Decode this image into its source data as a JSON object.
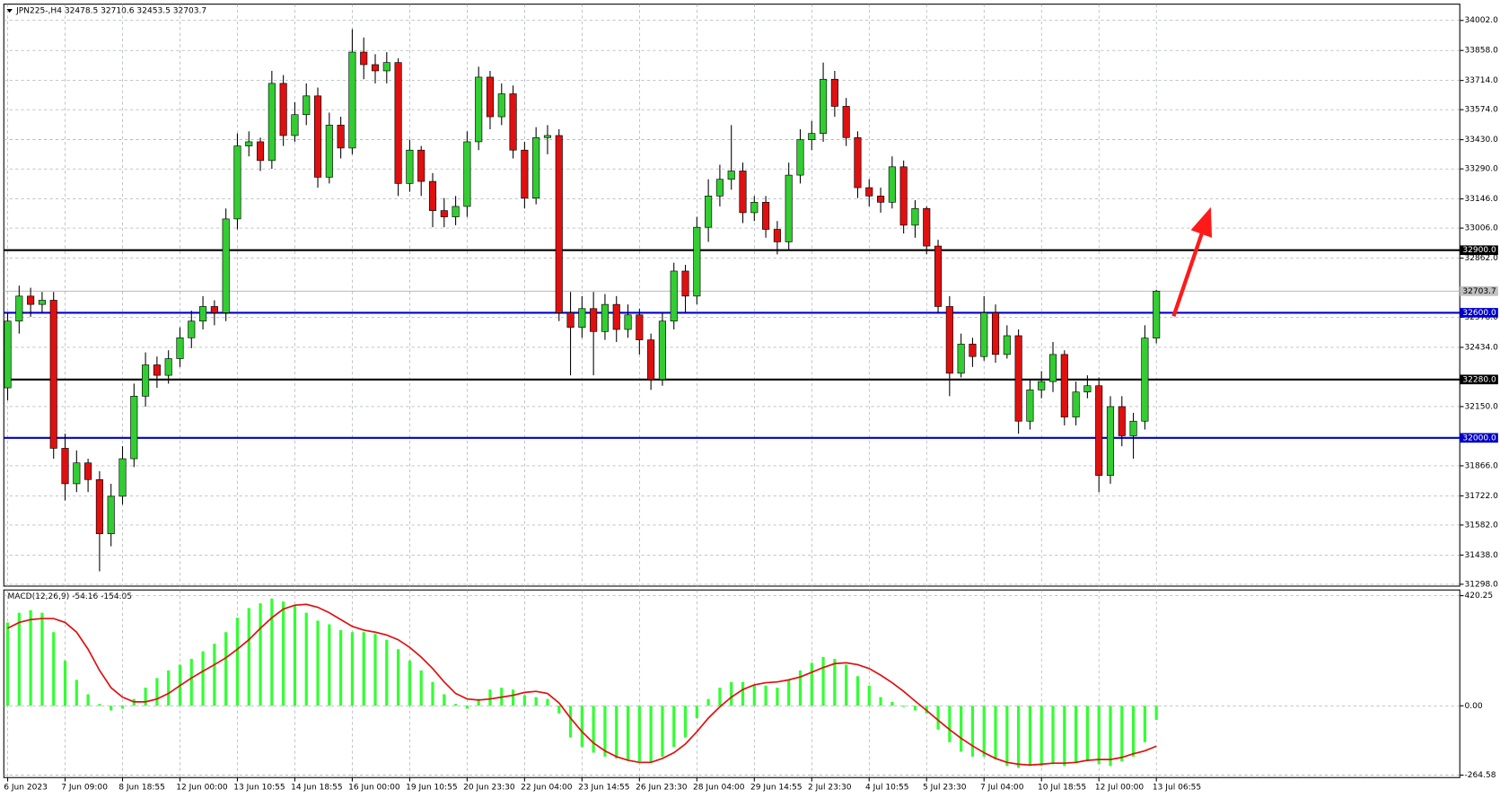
{
  "chart_data": [
    {
      "type": "candlestick",
      "title": "JPN225-,H4  32478.5 32710.6 32453.5 32703.7",
      "categories": [
        "6 Jun 2023",
        null,
        null,
        null,
        null,
        "7 Jun 09:00",
        null,
        null,
        null,
        null,
        "8 Jun 18:55",
        null,
        null,
        null,
        null,
        "12 Jun 00:00",
        null,
        null,
        null,
        null,
        "13 Jun 10:55",
        null,
        null,
        null,
        null,
        "14 Jun 18:55",
        null,
        null,
        null,
        null,
        "16 Jun 00:00",
        null,
        null,
        null,
        null,
        "19 Jun 10:55",
        null,
        null,
        null,
        null,
        "20 Jun 23:30",
        null,
        null,
        null,
        null,
        "22 Jun 04:00",
        null,
        null,
        null,
        null,
        "23 Jun 14:55",
        null,
        null,
        null,
        null,
        "26 Jun 23:30",
        null,
        null,
        null,
        null,
        "28 Jun 04:00",
        null,
        null,
        null,
        null,
        "29 Jun 14:55",
        null,
        null,
        null,
        null,
        "2 Jul 23:30",
        null,
        null,
        null,
        null,
        "4 Jul 10:55",
        null,
        null,
        null,
        null,
        "5 Jul 23:30",
        null,
        null,
        null,
        null,
        "7 Jul 04:00",
        null,
        null,
        null,
        null,
        "10 Jul 18:55",
        null,
        null,
        null,
        null,
        "12 Jul 00:00",
        null,
        null,
        null,
        null,
        "13 Jul 06:55"
      ],
      "open": [
        32240,
        32560,
        32680,
        32640,
        32660,
        31950,
        31780,
        31880,
        31800,
        31540,
        31720,
        31900,
        32200,
        32350,
        32300,
        32380,
        32480,
        32560,
        32630,
        32600,
        33050,
        33400,
        33420,
        33330,
        33700,
        33450,
        33550,
        33640,
        33250,
        33500,
        33390,
        33850,
        33790,
        33760,
        33800,
        33220,
        33380,
        33230,
        33090,
        33060,
        33110,
        33420,
        33730,
        33540,
        33650,
        33380,
        33150,
        33440,
        33450,
        32600,
        32530,
        32620,
        32510,
        32640,
        32520,
        32590,
        32470,
        32280,
        32560,
        32800,
        32680,
        33010,
        33160,
        33240,
        33280,
        33080,
        33130,
        33000,
        32940,
        33260,
        33430,
        33460,
        33720,
        33590,
        33440,
        33200,
        33160,
        33130,
        33300,
        33020,
        33100,
        32920,
        32630,
        32310,
        32450,
        32390,
        32600,
        32400,
        32490,
        32080,
        32230,
        32270,
        32400,
        32100,
        32220,
        32250,
        31820,
        32150,
        32010,
        32080,
        32478.5
      ],
      "high": [
        32600,
        32730,
        32720,
        32700,
        32700,
        32020,
        31940,
        31900,
        31840,
        31780,
        31960,
        32260,
        32410,
        32390,
        32420,
        32530,
        32610,
        32680,
        32660,
        33100,
        33460,
        33470,
        33440,
        33760,
        33740,
        33610,
        33700,
        33680,
        33560,
        33540,
        33960,
        33920,
        33840,
        33850,
        33820,
        33430,
        33400,
        33270,
        33150,
        33160,
        33470,
        33780,
        33760,
        33700,
        33690,
        33420,
        33490,
        33500,
        33480,
        32700,
        32680,
        32700,
        32690,
        32680,
        32640,
        32620,
        32500,
        32600,
        32840,
        32830,
        33060,
        33240,
        33310,
        33500,
        33320,
        33160,
        33160,
        33040,
        33320,
        33480,
        33520,
        33800,
        33760,
        33630,
        33470,
        33240,
        33200,
        33350,
        33330,
        33140,
        33110,
        32950,
        32680,
        32500,
        32480,
        32680,
        32640,
        32540,
        32520,
        32280,
        32320,
        32460,
        32420,
        32270,
        32300,
        32290,
        32200,
        32200,
        32120,
        32540,
        32710.6
      ],
      "low": [
        32180,
        32500,
        32580,
        32600,
        31900,
        31700,
        31740,
        31740,
        31360,
        31480,
        31680,
        31860,
        32150,
        32240,
        32260,
        32340,
        32430,
        32520,
        32540,
        32560,
        33000,
        33350,
        33280,
        33290,
        33400,
        33420,
        33500,
        33200,
        33220,
        33340,
        33360,
        33720,
        33700,
        33700,
        33160,
        33180,
        33160,
        33010,
        33010,
        33020,
        33060,
        33380,
        33480,
        33500,
        33340,
        33100,
        33120,
        33360,
        32560,
        32300,
        32480,
        32300,
        32470,
        32460,
        32480,
        32400,
        32230,
        32250,
        32520,
        32600,
        32640,
        32940,
        33110,
        33190,
        33030,
        33040,
        32960,
        32880,
        32900,
        33220,
        33380,
        33420,
        33540,
        33400,
        33150,
        33110,
        33080,
        33100,
        32980,
        32960,
        32880,
        32600,
        32200,
        32290,
        32340,
        32370,
        32360,
        32380,
        32020,
        32040,
        32190,
        32220,
        32060,
        32060,
        32190,
        31740,
        31780,
        31960,
        31900,
        32040,
        32453.5
      ],
      "close": [
        32560,
        32680,
        32640,
        32660,
        31950,
        31780,
        31880,
        31800,
        31540,
        31720,
        31900,
        32200,
        32350,
        32300,
        32380,
        32480,
        32560,
        32630,
        32600,
        33050,
        33400,
        33420,
        33330,
        33700,
        33450,
        33550,
        33640,
        33250,
        33500,
        33390,
        33850,
        33790,
        33760,
        33800,
        33220,
        33380,
        33230,
        33090,
        33060,
        33110,
        33420,
        33730,
        33540,
        33650,
        33380,
        33150,
        33440,
        33450,
        32600,
        32530,
        32620,
        32510,
        32640,
        32520,
        32590,
        32470,
        32280,
        32560,
        32800,
        32680,
        33010,
        33160,
        33240,
        33280,
        33080,
        33130,
        33000,
        32940,
        33260,
        33430,
        33460,
        33720,
        33590,
        33440,
        33200,
        33160,
        33130,
        33300,
        33020,
        33100,
        32920,
        32630,
        32310,
        32450,
        32390,
        32600,
        32400,
        32490,
        32080,
        32230,
        32270,
        32400,
        32100,
        32220,
        32250,
        31820,
        32150,
        32010,
        32080,
        32478.5,
        32703.7
      ],
      "up_color": "#32cd32",
      "down_color": "#e01010",
      "ylim": [
        31289,
        34080
      ],
      "yticks": [
        {
          "value": 34002,
          "label": "34002.0"
        },
        {
          "value": 33858,
          "label": "33858.0"
        },
        {
          "value": 33714,
          "label": "33714.0"
        },
        {
          "value": 33574,
          "label": "33574.0"
        },
        {
          "value": 33430,
          "label": "33430.0"
        },
        {
          "value": 33290,
          "label": "33290.0"
        },
        {
          "value": 33146,
          "label": "33146.0"
        },
        {
          "value": 33006,
          "label": "33006.0"
        },
        {
          "value": 32862,
          "label": "32862.0"
        },
        {
          "value": 32578,
          "label": "32578.0"
        },
        {
          "value": 32434,
          "label": "32434.0"
        },
        {
          "value": 32150,
          "label": "32150.0"
        },
        {
          "value": 31866,
          "label": "31866.0"
        },
        {
          "value": 31722,
          "label": "31722.0"
        },
        {
          "value": 31582,
          "label": "31582.0"
        },
        {
          "value": 31438,
          "label": "31438.0"
        },
        {
          "value": 31298,
          "label": "31298.0"
        }
      ],
      "levels": [
        {
          "value": 32900,
          "label": "32900.0",
          "color": "#000000"
        },
        {
          "value": 32600,
          "label": "32600.0",
          "color": "#0000c8"
        },
        {
          "value": 32280,
          "label": "32280.0",
          "color": "#000000"
        },
        {
          "value": 32000,
          "label": "32000.0",
          "color": "#0000c8"
        }
      ],
      "current_price": {
        "value": 32703.7,
        "label": "32703.7"
      },
      "grid": true
    },
    {
      "type": "macd",
      "title": "MACD(12,26,9) -54.16 -154.05",
      "series": [
        {
          "color": "#32ff32",
          "values": [
            318,
            355,
            365,
            355,
            281,
            172,
            99,
            44,
            7,
            -18,
            -11,
            26,
            69,
            106,
            135,
            157,
            179,
            208,
            237,
            281,
            336,
            373,
            391,
            409,
            398,
            384,
            355,
            325,
            311,
            289,
            281,
            281,
            274,
            252,
            216,
            172,
            135,
            91,
            44,
            7,
            -11,
            26,
            62,
            69,
            62,
            40,
            33,
            26,
            -29,
            -121,
            -157,
            -179,
            -194,
            -201,
            -208,
            -212,
            -216,
            -194,
            -157,
            -121,
            -47,
            26,
            69,
            91,
            91,
            80,
            77,
            69,
            99,
            135,
            164,
            186,
            179,
            157,
            113,
            77,
            33,
            15,
            -4,
            -18,
            -29,
            -91,
            -139,
            -175,
            -194,
            -194,
            -205,
            -230,
            -237,
            -230,
            -230,
            -223,
            -230,
            -219,
            -212,
            -223,
            -230,
            -212,
            -194,
            -139,
            -54.16
          ]
        },
        {
          "color": "#e01010",
          "values": [
            296,
            318,
            329,
            333,
            333,
            318,
            281,
            216,
            135,
            69,
            33,
            15,
            15,
            26,
            47,
            77,
            106,
            132,
            157,
            183,
            216,
            252,
            296,
            336,
            369,
            384,
            387,
            376,
            355,
            329,
            303,
            289,
            281,
            270,
            252,
            223,
            186,
            142,
            91,
            47,
            26,
            22,
            26,
            33,
            40,
            51,
            55,
            47,
            11,
            -47,
            -99,
            -142,
            -172,
            -194,
            -208,
            -216,
            -216,
            -201,
            -179,
            -146,
            -99,
            -47,
            -4,
            33,
            62,
            80,
            88,
            91,
            99,
            110,
            128,
            146,
            161,
            164,
            157,
            142,
            117,
            88,
            55,
            18,
            -18,
            -55,
            -91,
            -124,
            -153,
            -179,
            -201,
            -216,
            -223,
            -226,
            -223,
            -219,
            -219,
            -216,
            -208,
            -205,
            -205,
            -197,
            -183,
            -172,
            -154.05
          ]
        }
      ],
      "ylim": [
        -274,
        442
      ],
      "yticks": [
        {
          "value": 420.25,
          "label": "420.25"
        },
        {
          "value": 0,
          "label": "0.00"
        },
        {
          "value": -264.58,
          "label": "-264.58"
        }
      ]
    }
  ]
}
